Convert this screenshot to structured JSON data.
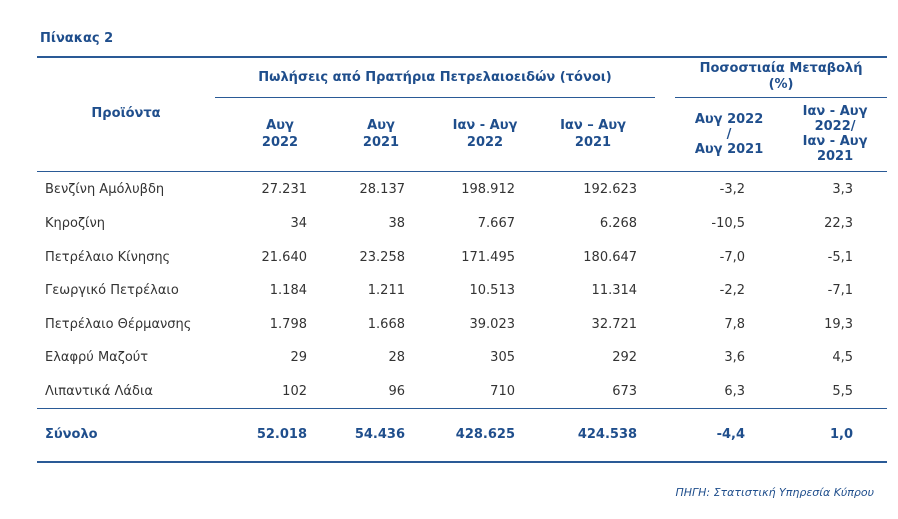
{
  "title": "Πίνακας 2",
  "header": {
    "products": "Προϊόντα",
    "group_sales": "Πωλήσεις από Πρατήρια Πετρελαιοειδών (τόνοι)",
    "group_change": "Ποσοστιαία Μεταβολή\n(%)",
    "cols": [
      "Αυγ\n2022",
      "Αυγ\n2021",
      "Ιαν - Αυγ\n2022",
      "Ιαν – Αυγ\n2021",
      "Αυγ 2022\n/\nΑυγ 2021",
      "Ιαν - Αυγ\n2022/\nΙαν - Αυγ\n2021"
    ]
  },
  "rows": [
    {
      "product": "Βενζίνη Αμόλυβδη",
      "v1": "27.231",
      "v2": "28.137",
      "v3": "198.912",
      "v4": "192.623",
      "p1": "-3,2",
      "p2": "3,3"
    },
    {
      "product": "Κηροζίνη",
      "v1": "34",
      "v2": "38",
      "v3": "7.667",
      "v4": "6.268",
      "p1": "-10,5",
      "p2": "22,3"
    },
    {
      "product": "Πετρέλαιο Κίνησης",
      "v1": "21.640",
      "v2": "23.258",
      "v3": "171.495",
      "v4": "180.647",
      "p1": "-7,0",
      "p2": "-5,1"
    },
    {
      "product": "Γεωργικό Πετρέλαιο",
      "v1": "1.184",
      "v2": "1.211",
      "v3": "10.513",
      "v4": "11.314",
      "p1": "-2,2",
      "p2": "-7,1"
    },
    {
      "product": "Πετρέλαιο Θέρμανσης",
      "v1": "1.798",
      "v2": "1.668",
      "v3": "39.023",
      "v4": "32.721",
      "p1": "7,8",
      "p2": "19,3"
    },
    {
      "product": "Ελαφρύ Μαζούτ",
      "v1": "29",
      "v2": "28",
      "v3": "305",
      "v4": "292",
      "p1": "3,6",
      "p2": "4,5"
    },
    {
      "product": "Λιπαντικά Λάδια",
      "v1": "102",
      "v2": "96",
      "v3": "710",
      "v4": "673",
      "p1": "6,3",
      "p2": "5,5"
    }
  ],
  "total": {
    "product": "Σύνολο",
    "v1": "52.018",
    "v2": "54.436",
    "v3": "428.625",
    "v4": "424.538",
    "p1": "-4,4",
    "p2": "1,0"
  },
  "footer": "ΠΗΓΗ: Στατιστική Υπηρεσία Κύπρου",
  "colors": {
    "accent": "#1f4e8c",
    "rule": "#2a5a96",
    "text": "#333333"
  }
}
